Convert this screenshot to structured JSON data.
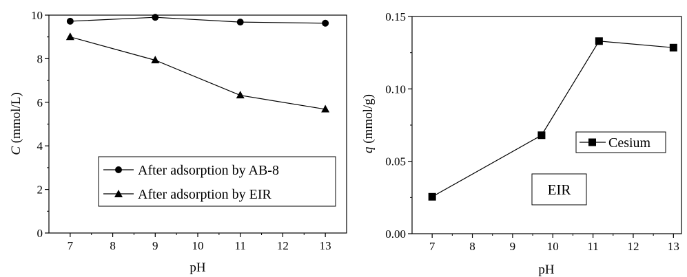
{
  "chart_data": [
    {
      "type": "line",
      "xlabel": "pH",
      "ylabel": {
        "var": "C",
        "unit": " (mmol/L)"
      },
      "xlim": [
        6.5,
        13.5
      ],
      "ylim": [
        0,
        10
      ],
      "xticks": [
        7,
        8,
        9,
        10,
        11,
        12,
        13
      ],
      "yticks": [
        0,
        2,
        4,
        6,
        8,
        10
      ],
      "legend_position": "bottom-right",
      "series": [
        {
          "name": "After adsorption by AB-8",
          "marker": "circle",
          "x": [
            7,
            9,
            11,
            13
          ],
          "y": [
            9.72,
            9.9,
            9.68,
            9.63
          ]
        },
        {
          "name": "After adsorption by EIR",
          "marker": "triangle",
          "x": [
            7,
            9,
            11,
            13
          ],
          "y": [
            9.0,
            7.93,
            6.32,
            5.68
          ]
        }
      ]
    },
    {
      "type": "line",
      "xlabel": "pH",
      "ylabel": {
        "var": "q",
        "unit": " (mmol/g)"
      },
      "xlim": [
        6.5,
        13.2
      ],
      "ylim": [
        0,
        0.15
      ],
      "xticks": [
        7,
        8,
        9,
        10,
        11,
        12,
        13
      ],
      "yticks": [
        0,
        0.05,
        0.1,
        0.15
      ],
      "ytick_labels": [
        "0.00",
        "0.05",
        "0.10",
        "0.15"
      ],
      "legend_position": "right",
      "annotation": "EIR",
      "series": [
        {
          "name": "Cesium",
          "marker": "square",
          "x": [
            7,
            9.72,
            11.15,
            13
          ],
          "y": [
            0.0255,
            0.068,
            0.133,
            0.1285
          ]
        }
      ]
    }
  ]
}
